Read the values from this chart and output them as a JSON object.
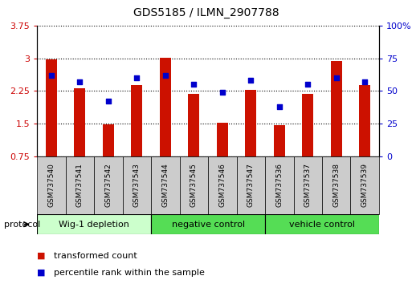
{
  "title": "GDS5185 / ILMN_2907788",
  "samples": [
    "GSM737540",
    "GSM737541",
    "GSM737542",
    "GSM737543",
    "GSM737544",
    "GSM737545",
    "GSM737546",
    "GSM737547",
    "GSM737536",
    "GSM737537",
    "GSM737538",
    "GSM737539"
  ],
  "red_values": [
    2.98,
    2.31,
    1.48,
    2.38,
    3.01,
    2.19,
    1.52,
    2.27,
    1.47,
    2.19,
    2.93,
    2.38
  ],
  "blue_values_pct": [
    62,
    57,
    42,
    60,
    62,
    55,
    49,
    58,
    38,
    55,
    60,
    57
  ],
  "ylim_left": [
    0.75,
    3.75
  ],
  "ylim_right": [
    0,
    100
  ],
  "yticks_left": [
    0.75,
    1.5,
    2.25,
    3.0,
    3.75
  ],
  "yticks_right": [
    0,
    25,
    50,
    75,
    100
  ],
  "ytick_labels_left": [
    "0.75",
    "1.5",
    "2.25",
    "3",
    "3.75"
  ],
  "ytick_labels_right": [
    "0",
    "25",
    "50",
    "75",
    "100%"
  ],
  "groups": [
    {
      "label": "Wig-1 depletion",
      "start": 0,
      "end": 4,
      "color": "#ccffcc"
    },
    {
      "label": "negative control",
      "start": 4,
      "end": 8,
      "color": "#55dd55"
    },
    {
      "label": "vehicle control",
      "start": 8,
      "end": 12,
      "color": "#55dd55"
    }
  ],
  "bar_color": "#cc1100",
  "dot_color": "#0000cc",
  "bar_width": 0.4,
  "xlabel_color": "#cc0000",
  "ylabel_right_color": "#0000cc",
  "sample_box_color": "#cccccc",
  "legend_red_label": "transformed count",
  "legend_blue_label": "percentile rank within the sample",
  "protocol_label": "protocol"
}
